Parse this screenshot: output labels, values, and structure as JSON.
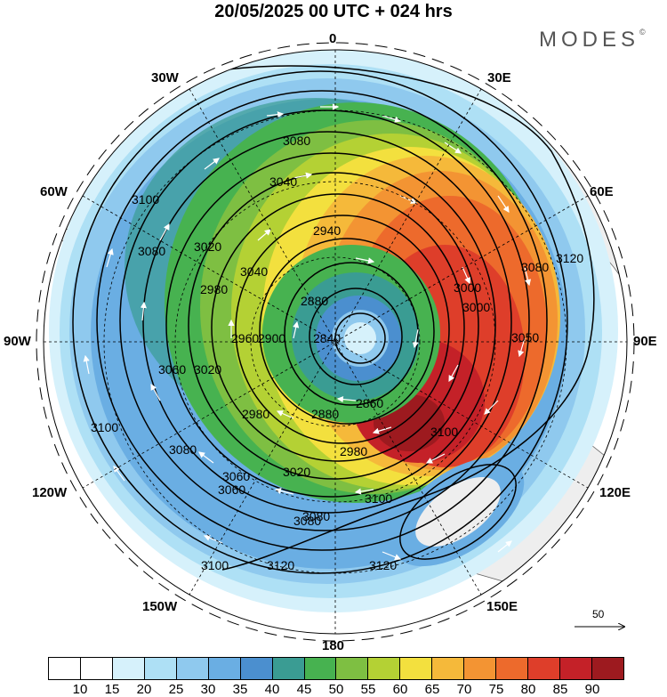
{
  "title": "20/05/2025  00 UTC  + 024 hrs",
  "brand": "MODES",
  "brand_mark": "©",
  "map": {
    "projection": "south-polar-stereographic",
    "longitude_labels": [
      {
        "name": "lon-0",
        "text": "0"
      },
      {
        "name": "lon-30e",
        "text": "30E"
      },
      {
        "name": "lon-60e",
        "text": "60E"
      },
      {
        "name": "lon-90e",
        "text": "90E"
      },
      {
        "name": "lon-120e",
        "text": "120E"
      },
      {
        "name": "lon-150e",
        "text": "150E"
      },
      {
        "name": "lon-180",
        "text": "180"
      },
      {
        "name": "lon-150w",
        "text": "150W"
      },
      {
        "name": "lon-120w",
        "text": "120W"
      },
      {
        "name": "lon-90w",
        "text": "90W"
      },
      {
        "name": "lon-60w",
        "text": "60W"
      },
      {
        "name": "lon-30w",
        "text": "30W"
      }
    ],
    "contour_labels": [
      "3080",
      "3040",
      "2940",
      "3100",
      "3020",
      "3080",
      "2980",
      "3000",
      "3080",
      "3040",
      "3000",
      "3120",
      "2880",
      "3050",
      "2840",
      "3060",
      "2960",
      "2900",
      "3020",
      "2860",
      "2880",
      "2980",
      "3060",
      "3080",
      "2980",
      "3100",
      "3020",
      "3080",
      "3060",
      "3080",
      "3100",
      "3120",
      "3100",
      "3100",
      "3120"
    ],
    "vector_reference": {
      "value": "50"
    },
    "colors": {
      "land": "#eeeeee",
      "coast": "#666666",
      "contour": "#000000",
      "vector": "#ffffff",
      "grid": "#000000"
    }
  },
  "legend": {
    "ticks": [
      "10",
      "15",
      "20",
      "25",
      "30",
      "35",
      "40",
      "45",
      "50",
      "55",
      "60",
      "65",
      "70",
      "75",
      "80",
      "85",
      "90"
    ],
    "colors": [
      "#ffffff",
      "#d6f1fb",
      "#aee0f5",
      "#8fc9ee",
      "#6aaee3",
      "#4b8fcf",
      "#3a9c93",
      "#47b250",
      "#7ebf42",
      "#b4d134",
      "#f3e03e",
      "#f5b93a",
      "#f39433",
      "#ed6a2c",
      "#de3e2a",
      "#c42128",
      "#9d1a1f"
    ]
  }
}
